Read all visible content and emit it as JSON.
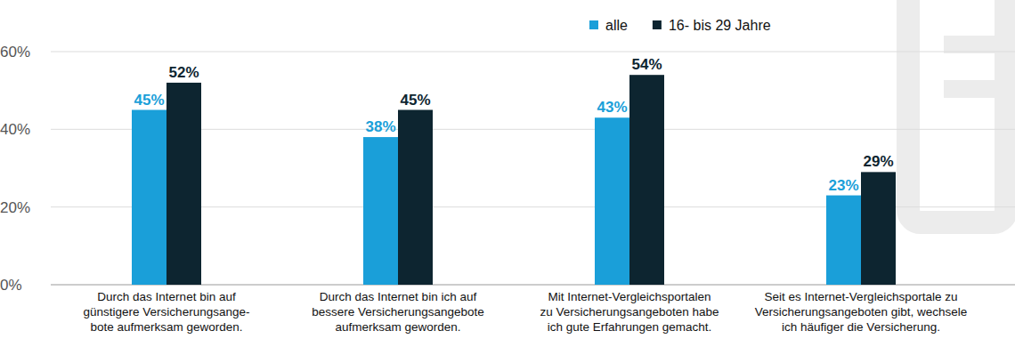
{
  "chart_data": {
    "type": "bar",
    "categories": [
      "Durch das Internet bin auf\ngünstigere Versicherungsange-\nbote aufmerksam geworden.",
      "Durch das Internet bin ich auf\nbessere Versicherungsangebote\naufmerksam geworden.",
      "Mit Internet-Vergleichsportalen\nzu Versicherungsangeboten habe\nich gute Erfahrungen gemacht.",
      "Seit es Internet-Vergleichsportale zu\nVersicherungsangeboten gibt, wechsele\nich häufiger die Versicherung."
    ],
    "series": [
      {
        "name": "alle",
        "color": "#1a9fd9",
        "values": [
          45,
          38,
          43,
          23
        ],
        "value_labels": [
          "45%",
          "38%",
          "43%",
          "23%"
        ]
      },
      {
        "name": "16- bis 29 Jahre",
        "color": "#0d2530",
        "values": [
          52,
          45,
          54,
          29
        ],
        "value_labels": [
          "52%",
          "45%",
          "54%",
          "29%"
        ]
      }
    ],
    "ylim": [
      0,
      60
    ],
    "yticks": [
      {
        "value": 0,
        "label": "0%"
      },
      {
        "value": 20,
        "label": "20%"
      },
      {
        "value": 40,
        "label": "40%"
      },
      {
        "value": 60,
        "label": "60%"
      }
    ],
    "grid": true,
    "legend": "top-right",
    "data_labels": true
  }
}
